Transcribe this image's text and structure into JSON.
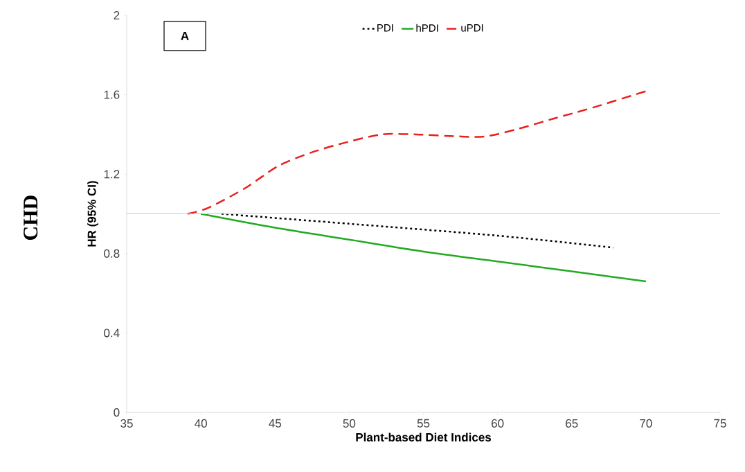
{
  "chart_data": {
    "type": "line",
    "xlabel": "Plant-based Diet Indices",
    "ylabel": "HR (95% CI)",
    "annotations": [
      "A",
      "CHD"
    ],
    "xlim": [
      35,
      75
    ],
    "xticks": [
      35,
      40,
      45,
      50,
      55,
      60,
      65,
      70,
      75
    ],
    "ylim": [
      0,
      2
    ],
    "yticks": [
      0,
      0.4,
      0.8,
      1.2,
      1.6,
      2
    ],
    "grid": false,
    "legend": "top",
    "marker": "none",
    "ref_lines": [
      {
        "axis": "y",
        "value": 1,
        "color": "#c8c8c8"
      }
    ],
    "series": [
      {
        "name": "PDI",
        "color": "#000000",
        "line_style": "dotted",
        "x": [
          41.4,
          50,
          60,
          67.8
        ],
        "values": [
          1.0,
          0.95,
          0.89,
          0.83
        ]
      },
      {
        "name": "hPDI",
        "color": "#22aa22",
        "line_style": "solid",
        "x": [
          40,
          45,
          50,
          55,
          60,
          65,
          70
        ],
        "values": [
          1.0,
          0.93,
          0.87,
          0.81,
          0.76,
          0.71,
          0.66
        ]
      },
      {
        "name": "uPDI",
        "color": "#e8201e",
        "line_style": "dashed",
        "x": [
          39.1,
          40.5,
          43,
          45.2,
          47.5,
          49.8,
          52.2,
          54.5,
          57.3,
          59.2,
          61.5,
          63.8,
          66.2,
          70.1
        ],
        "values": [
          1.0,
          1.03,
          1.13,
          1.24,
          1.31,
          1.36,
          1.4,
          1.4,
          1.39,
          1.39,
          1.43,
          1.48,
          1.53,
          1.62
        ]
      }
    ]
  }
}
